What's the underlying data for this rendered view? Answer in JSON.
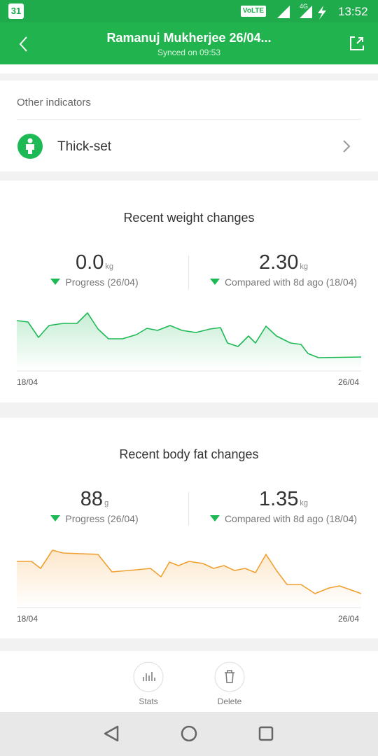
{
  "status_bar": {
    "calendar_day": "31",
    "network": "VoLTE",
    "signal_type": "4G",
    "time": "13:52"
  },
  "header": {
    "title": "Ramanuj Mukherjee 26/04...",
    "subtitle": "Synced on 09:53"
  },
  "indicators": {
    "heading": "Other indicators",
    "item": "Thick-set"
  },
  "weight": {
    "title": "Recent weight changes",
    "left_value": "0.0",
    "left_unit": "kg",
    "left_label": "Progress (26/04)",
    "right_value": "2.30",
    "right_unit": "kg",
    "right_label": "Compared with 8d ago (18/04)",
    "start_date": "18/04",
    "end_date": "26/04"
  },
  "body_fat": {
    "title": "Recent body fat changes",
    "left_value": "88",
    "left_unit": "g",
    "left_label": "Progress (26/04)",
    "right_value": "1.35",
    "right_unit": "kg",
    "right_label": "Compared with 8d ago (18/04)",
    "start_date": "18/04",
    "end_date": "26/04"
  },
  "actions": {
    "stats": "Stats",
    "delete": "Delete"
  }
}
